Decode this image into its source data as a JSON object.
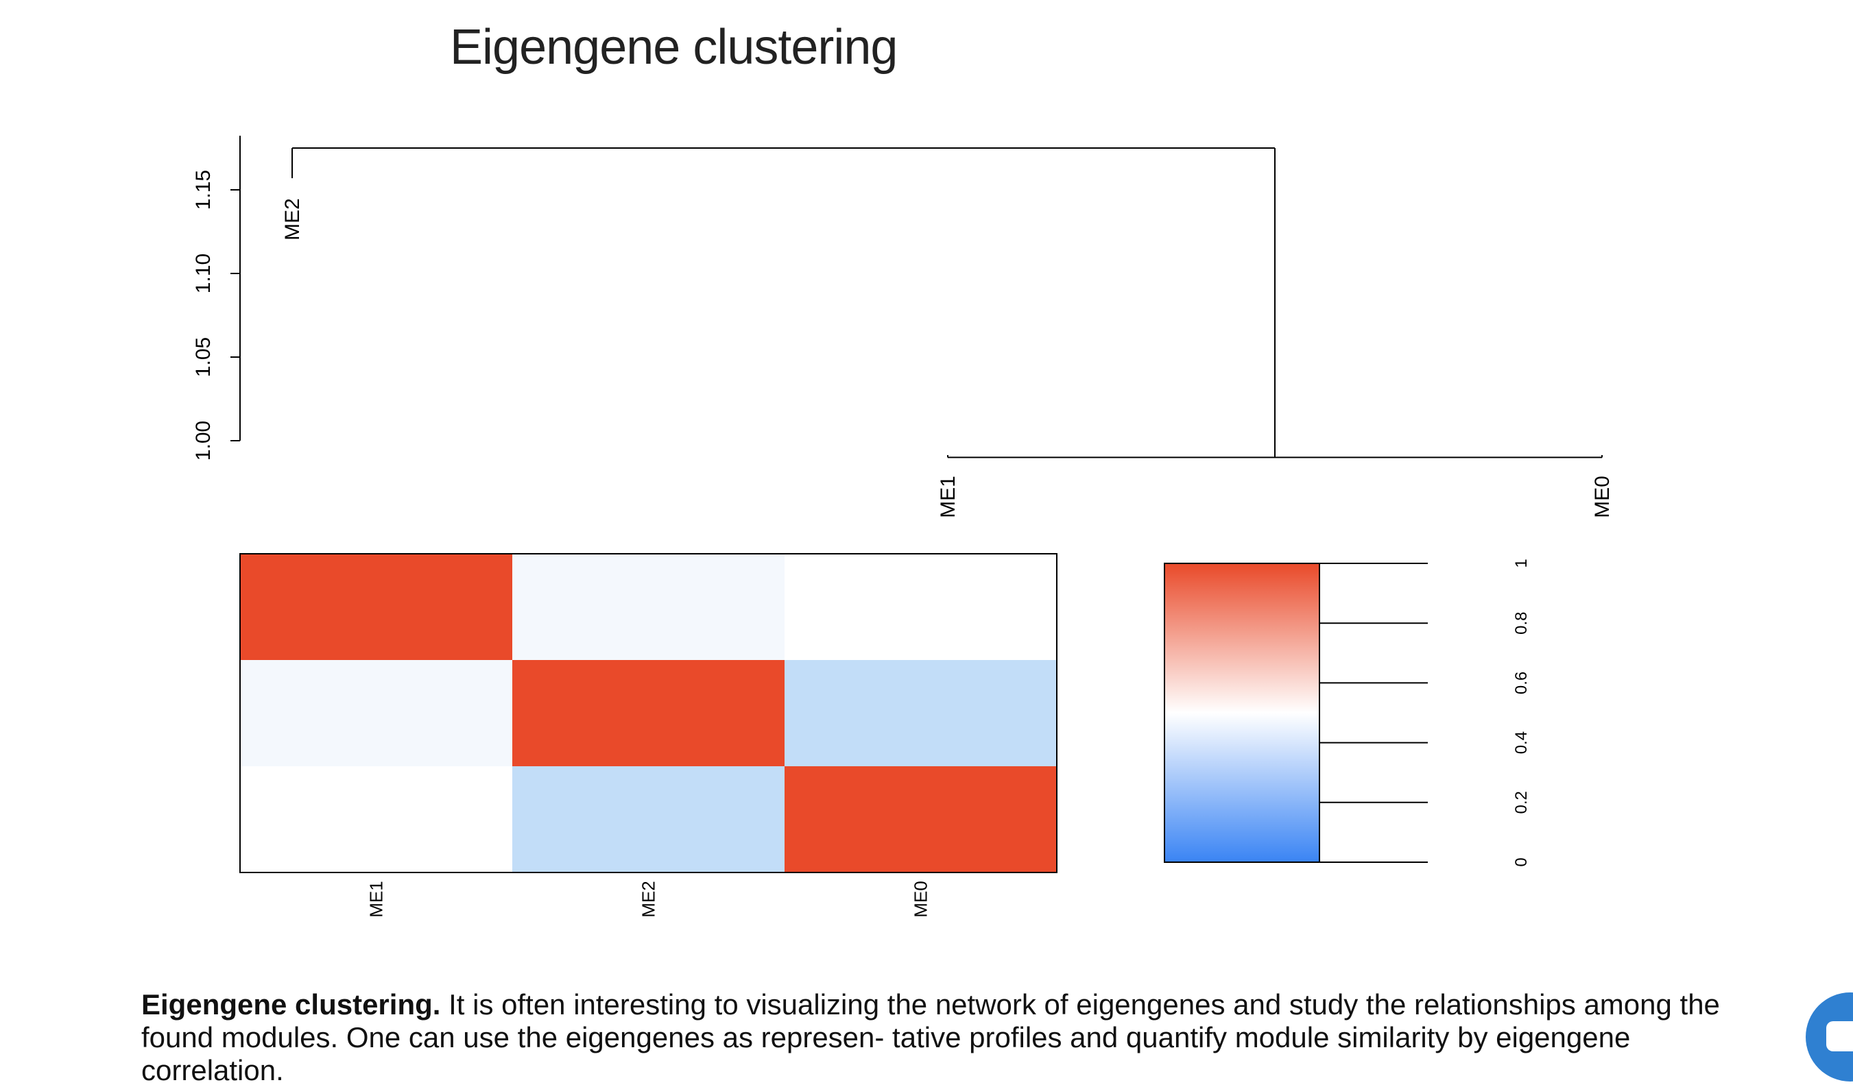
{
  "title": "Eigengene clustering",
  "chart_data": [
    {
      "type": "dendrogram",
      "title": "Eigengene clustering",
      "ylabel": "",
      "ylim": [
        1.0,
        1.15
      ],
      "yticks": [
        "1.00",
        "1.05",
        "1.10",
        "1.15"
      ],
      "leaves": [
        "ME2",
        "ME1",
        "ME0"
      ],
      "merges": [
        {
          "left": "ME1",
          "right": "ME0",
          "height": 0.99
        },
        {
          "left": "ME2",
          "right": "ME1+ME0",
          "height": 1.175
        }
      ]
    },
    {
      "type": "heatmap",
      "rows": [
        "ME1",
        "ME2",
        "ME0"
      ],
      "columns": [
        "ME1",
        "ME2",
        "ME0"
      ],
      "values": [
        [
          1.0,
          0.49,
          0.5
        ],
        [
          0.49,
          1.0,
          0.4
        ],
        [
          0.5,
          0.4,
          1.0
        ]
      ],
      "colorbar": {
        "ticks": [
          "0",
          "0.2",
          "0.4",
          "0.6",
          "0.8",
          "1"
        ],
        "low": "#3a84f4",
        "mid": "#ffffff",
        "high": "#e94a2a"
      }
    }
  ],
  "caption": {
    "bold": "Eigengene clustering.",
    "text": "It is often interesting to visualizing the network of eigengenes and study the relationships among the found modules. One can use the eigengenes as represen- tative profiles and quantify module similarity by eigengene correlation."
  },
  "colors": {
    "high": "#e94a2a",
    "mid": "#ffffff",
    "low": "#3a84f4",
    "chat": "#2f80d1"
  },
  "icons": {
    "chat": "chat-bubble-icon"
  }
}
